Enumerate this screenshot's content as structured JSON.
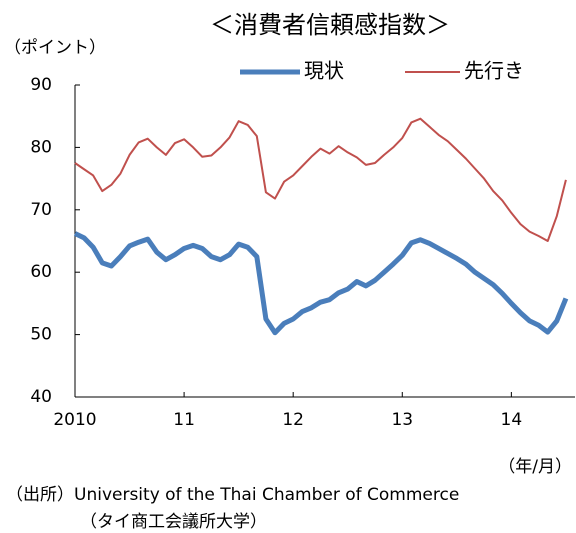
{
  "chart_data": {
    "type": "line",
    "title": "＜消費者信頼感指数＞",
    "y_label": "（ポイント）",
    "x_label": "（年/月）",
    "source": "（出所）University of the Thai Chamber of Commerce",
    "source_note": "（タイ商工会議所大学）",
    "x": [
      0,
      1,
      2,
      3,
      4,
      5,
      6,
      7,
      8,
      9,
      10,
      11,
      12,
      13,
      14,
      15,
      16,
      17,
      18,
      19,
      20,
      21,
      22,
      23,
      24,
      25,
      26,
      27,
      28,
      29,
      30,
      31,
      32,
      33,
      34,
      35,
      36,
      37,
      38,
      39,
      40,
      41,
      42,
      43,
      44,
      45,
      46,
      47,
      48,
      49,
      50,
      51,
      52,
      53,
      54
    ],
    "xlim": [
      0,
      55
    ],
    "xticks": [
      {
        "value": 0,
        "label": "2010"
      },
      {
        "value": 12,
        "label": "11"
      },
      {
        "value": 24,
        "label": "12"
      },
      {
        "value": 36,
        "label": "13"
      },
      {
        "value": 48,
        "label": "14"
      }
    ],
    "ylim": [
      40,
      90
    ],
    "yticks": [
      40,
      50,
      60,
      70,
      80,
      90
    ],
    "legend": "top",
    "series": [
      {
        "name": "現状",
        "color": "#4a7ebb",
        "values": [
          66.2,
          65.5,
          64,
          61.5,
          61,
          62.5,
          64.2,
          64.8,
          65.3,
          63.2,
          62,
          62.8,
          63.8,
          64.3,
          63.8,
          62.5,
          62,
          62.8,
          64.5,
          64,
          62.5,
          52.5,
          50.3,
          51.8,
          52.5,
          53.7,
          54.3,
          55.2,
          55.6,
          56.7,
          57.3,
          58.5,
          57.8,
          58.7,
          60,
          61.3,
          62.7,
          64.7,
          65.2,
          64.6,
          63.8,
          63,
          62.2,
          61.3,
          60,
          59,
          58,
          56.6,
          55,
          53.5,
          52.2,
          51.5,
          50.4,
          52.2,
          55.8
        ]
      },
      {
        "name": "先行き",
        "color": "#c0504d",
        "values": [
          77.5,
          76.5,
          75.5,
          73,
          74,
          75.8,
          78.8,
          80.8,
          81.4,
          80,
          78.8,
          80.7,
          81.3,
          80,
          78.5,
          78.7,
          80,
          81.6,
          84.2,
          83.6,
          81.8,
          72.8,
          71.8,
          74.5,
          75.5,
          77,
          78.5,
          79.8,
          79,
          80.2,
          79.2,
          78.4,
          77.2,
          77.5,
          78.8,
          80,
          81.5,
          84,
          84.6,
          83.3,
          82,
          81,
          79.6,
          78.2,
          76.6,
          75,
          73,
          71.5,
          69.5,
          67.7,
          66.5,
          65.8,
          65,
          69,
          74.8
        ]
      }
    ]
  }
}
